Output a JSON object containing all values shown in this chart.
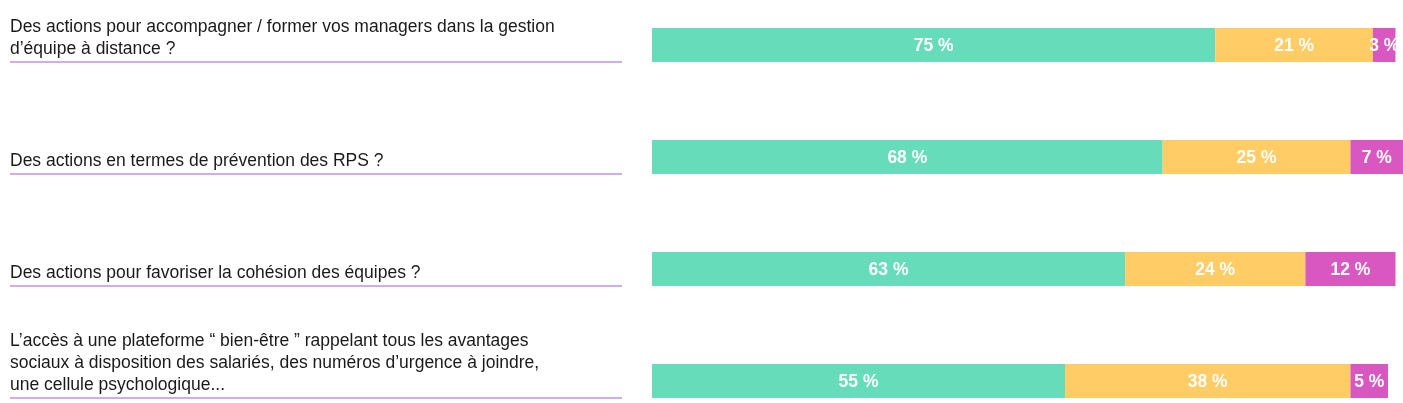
{
  "chart_data": {
    "type": "bar",
    "orientation": "horizontal",
    "stacked": true,
    "xlim": [
      0,
      100
    ],
    "tick_labels": false,
    "categories": [
      "Des actions pour accompagner / former vos managers dans la gestion d’équipe à distance ?",
      "Des actions en termes de prévention des RPS ?",
      "Des actions pour favoriser la cohésion des équipes ?",
      "L’accès à une plateforme “ bien-être ” rappelant tous les avantages sociaux à disposition des salariés, des numéros d’urgence à joindre, une cellule psychologique..."
    ],
    "series": [
      {
        "color": "#66dcbb",
        "values": [
          75,
          68,
          63,
          55
        ],
        "value_labels": [
          "75 %",
          "68 %",
          "63 %",
          "55 %"
        ]
      },
      {
        "color": "#ffcc66",
        "values": [
          21,
          25,
          24,
          38
        ],
        "value_labels": [
          "21 %",
          "25 %",
          "24 %",
          "38 %"
        ]
      },
      {
        "color": "#d957c0",
        "values": [
          3,
          7,
          12,
          5
        ],
        "value_labels": [
          "3 %",
          "7 %",
          "12 %",
          "5 %"
        ]
      }
    ]
  }
}
